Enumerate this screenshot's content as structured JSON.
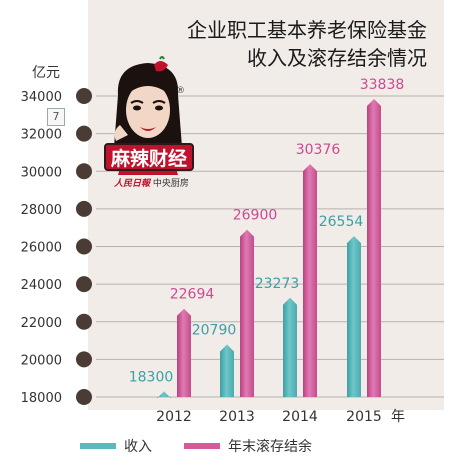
{
  "title": {
    "line1": "企业职工基本养老保险基金",
    "line2": "收入及滚存结余情况"
  },
  "unit_label": "亿元",
  "page_badge": "7",
  "logo": {
    "name": "麻辣财经",
    "sub_red": "人民日報",
    "sub_text": "中央厨房",
    "registered_mark": "®"
  },
  "year_suffix": "年",
  "chart_data": {
    "type": "bar",
    "title": "企业职工基本养老保险基金收入及滚存结余情况",
    "ylabel": "亿元",
    "xlabel": "",
    "categories": [
      "2012",
      "2013",
      "2014",
      "2015"
    ],
    "series": [
      {
        "name": "收入",
        "values": [
          18300,
          20790,
          23273,
          26554
        ],
        "color": "#5bb9bd"
      },
      {
        "name": "年末滚存结余",
        "values": [
          22694,
          26900,
          30376,
          33838
        ],
        "color": "#d45a9c"
      }
    ],
    "ylim": [
      18000,
      34000
    ],
    "yticks": [
      18000,
      20000,
      22000,
      24000,
      26000,
      28000,
      30000,
      32000,
      34000
    ],
    "grid": true,
    "legend": "bottom"
  }
}
